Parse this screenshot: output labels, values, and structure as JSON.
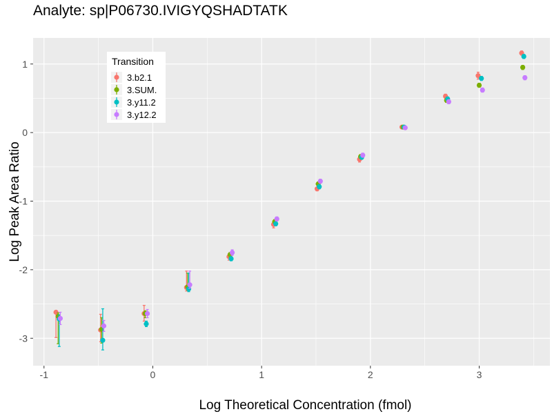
{
  "chart_data": {
    "type": "scatter",
    "title": "Analyte: sp|P06730.IVIGYQSHADTATK",
    "xlabel": "Log Theoretical Concentration (fmol)",
    "ylabel": "Log Peak Area Ratio",
    "xlim": [
      -1.1,
      3.65
    ],
    "ylim": [
      -3.4,
      1.38
    ],
    "x_ticks": [
      -1,
      0,
      1,
      2,
      3
    ],
    "y_ticks": [
      -3,
      -2,
      -1,
      0,
      1
    ],
    "x_tick_labels": [
      "-1",
      "0",
      "1",
      "2",
      "3"
    ],
    "y_tick_labels": [
      "-3",
      "-2",
      "-1",
      "0",
      "1"
    ],
    "grid": true,
    "legend": {
      "title": "Transition",
      "position": "top-left",
      "entries": [
        "3.b2.1",
        "3.SUM.",
        "3.y11.2",
        "3.y12.2"
      ]
    },
    "series": [
      {
        "name": "3.b2.1",
        "color": "#F8766D",
        "x": [
          -0.89,
          -0.48,
          -0.08,
          0.31,
          0.7,
          1.11,
          1.51,
          1.9,
          2.29,
          2.69,
          2.99,
          3.39
        ],
        "y": [
          -2.62,
          -2.88,
          -2.64,
          -2.26,
          -1.81,
          -1.34,
          -0.82,
          -0.39,
          0.08,
          0.53,
          0.83,
          1.16
        ],
        "error_low": [
          -2.99,
          -3.05,
          -2.75,
          -2.31,
          -1.86,
          -1.39,
          -0.85,
          -0.43,
          0.06,
          0.5,
          0.78,
          1.13
        ],
        "error_high": [
          -2.6,
          -2.65,
          -2.52,
          -2.02,
          -1.77,
          -1.3,
          -0.8,
          -0.35,
          0.1,
          0.56,
          0.88,
          1.19
        ]
      },
      {
        "name": "3.SUM.",
        "color": "#7CAE00",
        "x": [
          -0.87,
          -0.47,
          -0.07,
          0.32,
          0.71,
          1.12,
          1.52,
          1.91,
          2.3,
          2.7,
          3.0,
          3.4
        ],
        "y": [
          -2.68,
          -2.87,
          -2.64,
          -2.25,
          -1.78,
          -1.3,
          -0.75,
          -0.35,
          0.08,
          0.47,
          0.69,
          0.95
        ],
        "error_low": [
          -3.08,
          -3.07,
          -2.7,
          -2.3,
          -1.82,
          -1.33,
          -0.78,
          -0.38,
          0.06,
          0.44,
          0.66,
          0.92
        ],
        "error_high": [
          -2.63,
          -2.7,
          -2.6,
          -2.05,
          -1.75,
          -1.27,
          -0.72,
          -0.32,
          0.1,
          0.5,
          0.72,
          0.98
        ]
      },
      {
        "name": "3.y11.2",
        "color": "#00BFC4",
        "x": [
          -0.86,
          -0.46,
          -0.06,
          0.33,
          0.72,
          1.13,
          1.53,
          1.92,
          2.31,
          2.71,
          3.02,
          3.41
        ],
        "y": [
          -2.72,
          -3.03,
          -2.79,
          -2.28,
          -1.84,
          -1.33,
          -0.79,
          -0.36,
          0.08,
          0.49,
          0.79,
          1.11
        ],
        "error_low": [
          -3.12,
          -3.17,
          -2.83,
          -2.32,
          -1.87,
          -1.36,
          -0.82,
          -0.39,
          0.06,
          0.46,
          0.76,
          1.08
        ],
        "error_high": [
          -2.66,
          -2.57,
          -2.75,
          -2.05,
          -1.81,
          -1.3,
          -0.76,
          -0.33,
          0.1,
          0.52,
          0.82,
          1.14
        ]
      },
      {
        "name": "3.y12.2",
        "color": "#C77CFF",
        "x": [
          -0.85,
          -0.45,
          -0.05,
          0.34,
          0.73,
          1.14,
          1.54,
          1.93,
          2.32,
          2.72,
          3.03,
          3.42
        ],
        "y": [
          -2.71,
          -2.82,
          -2.64,
          -2.22,
          -1.75,
          -1.26,
          -0.71,
          -0.33,
          0.07,
          0.45,
          0.62,
          0.8
        ],
        "error_low": [
          -2.8,
          -2.9,
          -2.7,
          -2.27,
          -1.79,
          -1.29,
          -0.74,
          -0.36,
          0.05,
          0.42,
          0.59,
          0.77
        ],
        "error_high": [
          -2.62,
          -2.74,
          -2.58,
          -2.02,
          -1.71,
          -1.23,
          -0.68,
          -0.3,
          0.09,
          0.48,
          0.65,
          0.83
        ]
      }
    ]
  }
}
